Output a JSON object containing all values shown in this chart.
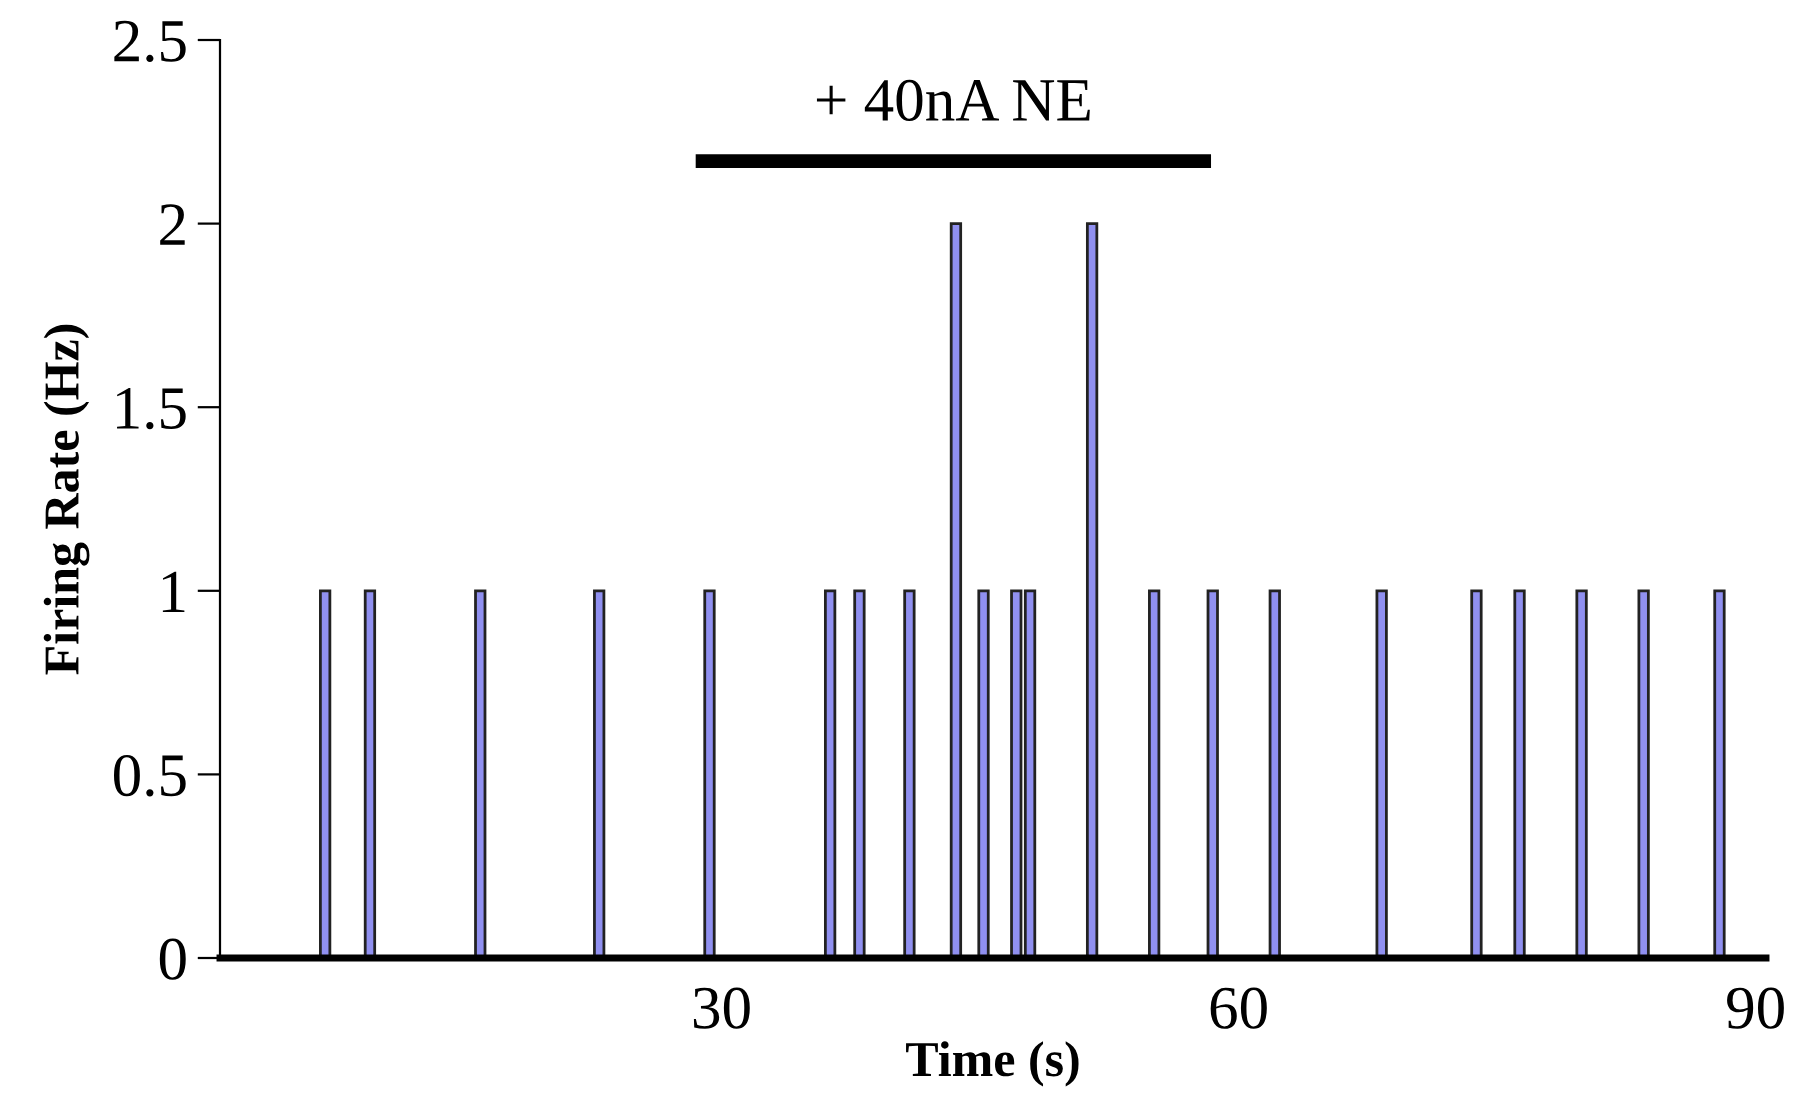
{
  "chart_data": {
    "type": "bar",
    "xlabel": "Time (s)",
    "ylabel": "Firing Rate (Hz)",
    "series": [
      {
        "color": "#9090f0",
        "x": [
          7.0,
          9.6,
          16.0,
          22.9,
          29.3,
          36.3,
          38.0,
          40.9,
          43.6,
          45.2,
          47.1,
          47.9,
          51.5,
          55.1,
          58.5,
          62.1,
          68.3,
          73.8,
          76.3,
          79.9,
          83.5,
          87.9
        ],
        "values": [
          1,
          1,
          1,
          1,
          1,
          1,
          1,
          1,
          2,
          1,
          1,
          1,
          2,
          1,
          1,
          1,
          1,
          1,
          1,
          1,
          1,
          1
        ]
      },
      {
        "type": "line",
        "color": "#000000",
        "x": [
          28.5,
          58.4
        ],
        "values": [
          2.17,
          2.17
        ]
      }
    ],
    "annotations": [
      {
        "text": "+ 40nA NE",
        "x": 43.45,
        "y": 2.17
      }
    ],
    "xlim": [
      0.9,
      90.6
    ],
    "xticks": [
      30,
      60,
      90
    ],
    "ylim": [
      0,
      2.5
    ],
    "yticks": [
      0,
      0.5,
      1,
      1.5,
      2,
      2.5
    ],
    "grid": false,
    "legend": false
  }
}
